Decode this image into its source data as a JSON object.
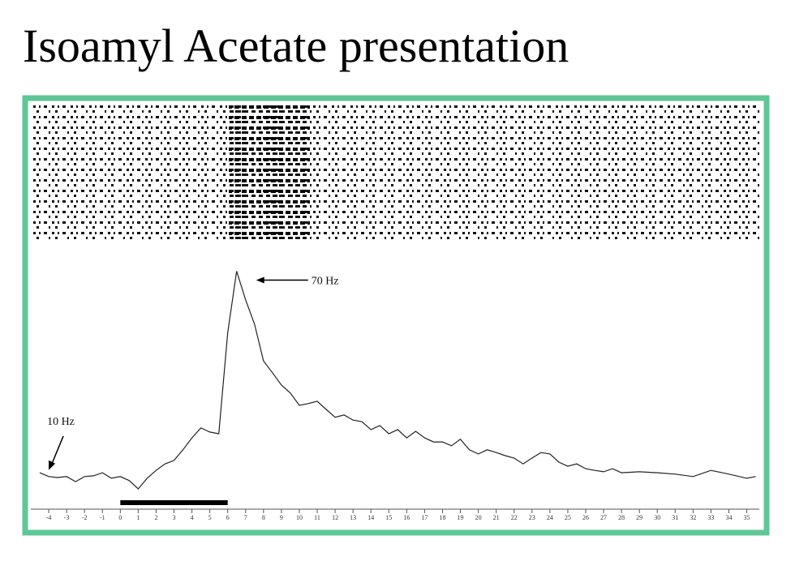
{
  "chart_data": {
    "type": "line",
    "title": "Isoamyl Acetate presentation",
    "x": [
      -4.5,
      -4,
      -3.5,
      -3,
      -2.5,
      -2,
      -1.5,
      -1,
      -0.5,
      0,
      0.5,
      1,
      1.5,
      2,
      2.5,
      3,
      3.5,
      4,
      4.5,
      5,
      5.5,
      6,
      6.5,
      7,
      7.5,
      8,
      8.5,
      9,
      9.5,
      10,
      10.5,
      11,
      11.5,
      12,
      12.5,
      13,
      13.5,
      14,
      14.5,
      15,
      15.5,
      16,
      16.5,
      17,
      17.5,
      18,
      18.5,
      19,
      19.5,
      20,
      20.5,
      21,
      21.5,
      22,
      22.5,
      23,
      23.5,
      24,
      24.5,
      25,
      25.5,
      26,
      26.5,
      27,
      27.5,
      28,
      29,
      30,
      31,
      32,
      33,
      34,
      35,
      35.5
    ],
    "series": [
      {
        "color": "#222222",
        "values": [
          11.1,
          10,
          9.7,
          10,
          8.5,
          10,
          10.2,
          11.1,
          9.5,
          10,
          8.8,
          6.4,
          9.5,
          11.8,
          13.7,
          14.7,
          17.8,
          21.3,
          24.2,
          23,
          22.5,
          52,
          70,
          61.6,
          54.5,
          43.8,
          40.3,
          36.7,
          34.4,
          30.8,
          31.3,
          32,
          29.6,
          27.3,
          28,
          26.5,
          26,
          23.7,
          24.9,
          22.5,
          23.7,
          21.3,
          23.2,
          21.3,
          20.1,
          20.1,
          19,
          20.9,
          17.8,
          16.6,
          17.8,
          17,
          16.1,
          15.4,
          13.7,
          15.4,
          17,
          16.6,
          14.2,
          13,
          13.7,
          12.3,
          11.8,
          11.4,
          12.3,
          11.1,
          11.4,
          11.1,
          10.7,
          10,
          11.8,
          10.7,
          9.5,
          10
        ]
      }
    ],
    "xlim": [
      -5,
      35.7
    ],
    "ylim": [
      0,
      72
    ],
    "xticks": [
      -4,
      -3,
      -2,
      -1,
      0,
      1,
      2,
      3,
      4,
      5,
      6,
      7,
      8,
      9,
      10,
      11,
      12,
      13,
      14,
      15,
      16,
      17,
      18,
      19,
      20,
      21,
      22,
      23,
      24,
      25,
      26,
      27,
      28,
      29,
      30,
      31,
      32,
      33,
      34,
      35
    ],
    "stimulus": [
      0,
      6
    ],
    "annotations": [
      {
        "text": "70 Hz",
        "x": 6.5,
        "y": 70
      },
      {
        "text": "10 Hz",
        "x": -4,
        "y": 10
      }
    ],
    "frame_color": "#5ec796"
  }
}
